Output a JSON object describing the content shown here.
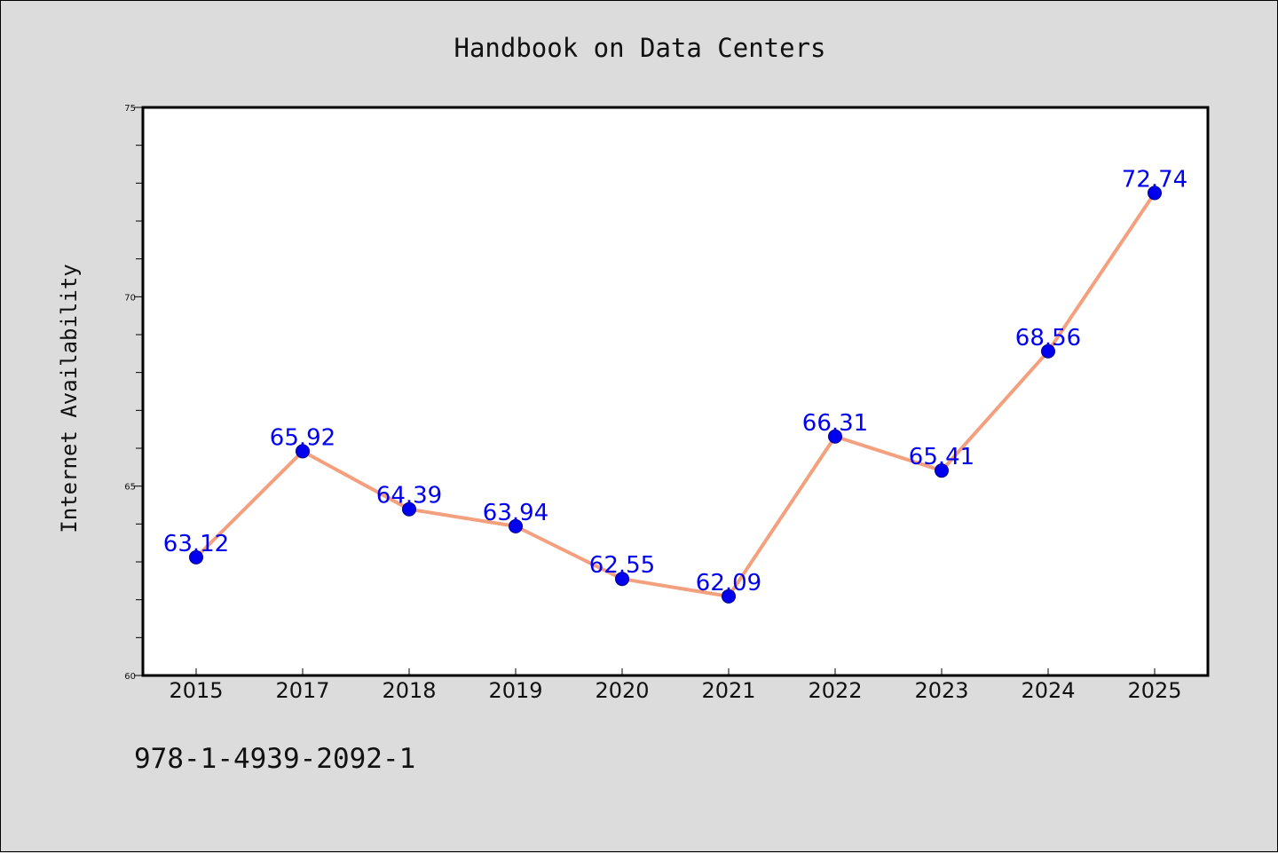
{
  "header": {
    "title": "Handbook on Data Centers"
  },
  "footer": {
    "isbn": "978-1-4939-2092-1"
  },
  "colors": {
    "background": "#dcdcdc",
    "plot_background": "#ffffff",
    "line": "#f4a07e",
    "marker": "#0000ee",
    "data_label": "#0000ee"
  },
  "chart_data": {
    "type": "line",
    "title": "Handbook on Data Centers",
    "xlabel": "",
    "ylabel": "Internet Availability",
    "categories": [
      "2015",
      "2017",
      "2018",
      "2019",
      "2020",
      "2021",
      "2022",
      "2023",
      "2024",
      "2025"
    ],
    "series": [
      {
        "values": [
          63.12,
          65.92,
          64.39,
          63.94,
          62.55,
          62.09,
          66.31,
          65.41,
          68.56,
          72.74
        ]
      }
    ],
    "data_labels": [
      "63.12",
      "65.92",
      "64.39",
      "63.94",
      "62.55",
      "62.09",
      "66.31",
      "65.41",
      "68.56",
      "72.74"
    ],
    "ylim": [
      60,
      75
    ],
    "yticks": [
      60,
      65,
      70,
      75
    ],
    "y_minor_step": 1,
    "grid": false,
    "legend": "none"
  }
}
